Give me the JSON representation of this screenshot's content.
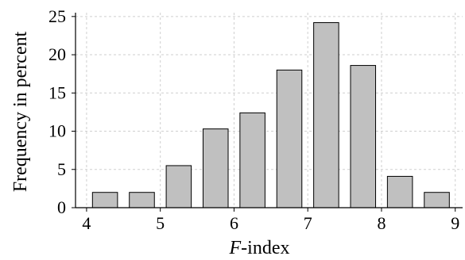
{
  "chart_data": {
    "type": "bar",
    "xlabel_italic": "F",
    "xlabel_rest": "-index",
    "ylabel": "Frequency in percent",
    "xlim": [
      3.85,
      9.1
    ],
    "ylim": [
      0,
      25.5
    ],
    "x_ticks": [
      4,
      5,
      6,
      7,
      8,
      9
    ],
    "y_ticks": [
      0,
      5,
      10,
      15,
      20,
      25
    ],
    "grid": true,
    "bar_width": 0.34,
    "bar_color": "#c0c0c0",
    "bars": [
      {
        "x": 4.25,
        "value": 2.0
      },
      {
        "x": 4.75,
        "value": 2.0
      },
      {
        "x": 5.25,
        "value": 5.5
      },
      {
        "x": 5.75,
        "value": 10.3
      },
      {
        "x": 6.25,
        "value": 12.4
      },
      {
        "x": 6.75,
        "value": 18.0
      },
      {
        "x": 7.25,
        "value": 24.2
      },
      {
        "x": 7.75,
        "value": 18.6
      },
      {
        "x": 8.25,
        "value": 4.1
      },
      {
        "x": 8.75,
        "value": 2.0
      }
    ]
  }
}
